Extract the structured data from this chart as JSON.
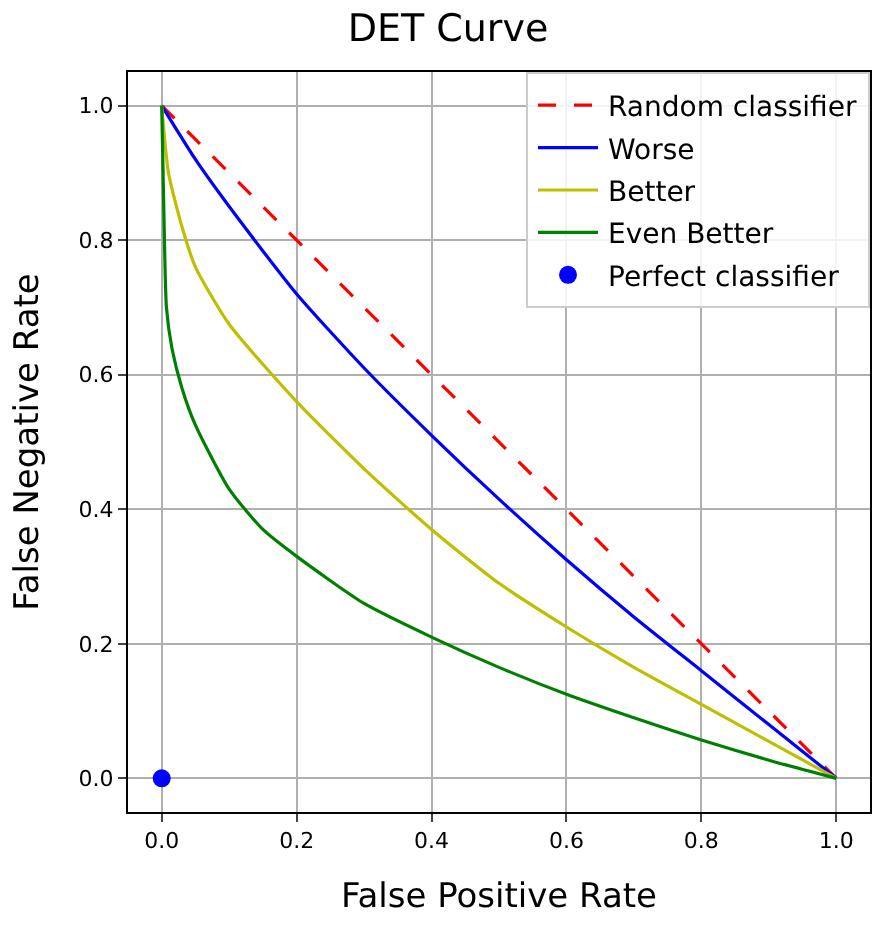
{
  "chart_data": {
    "type": "line",
    "title": "DET Curve",
    "xlabel": "False Positive Rate",
    "ylabel": "False Negative Rate",
    "xlim": [
      -0.05,
      1.05
    ],
    "ylim": [
      -0.05,
      1.05
    ],
    "xticks": [
      {
        "value": 0,
        "label": "0.0"
      },
      0.2,
      0.4,
      0.6,
      0.8,
      {
        "value": 1,
        "label": "1.0"
      }
    ],
    "yticks": [
      {
        "value": 0,
        "label": "0.0"
      },
      0.2,
      0.4,
      0.6,
      0.8,
      {
        "value": 1,
        "label": "1.0"
      }
    ],
    "grid": true,
    "legend": "top right",
    "series": [
      {
        "name": "Random classifier",
        "color": "#ff0000",
        "line_style": "dashed",
        "x": [
          0,
          1
        ],
        "values": [
          1,
          0
        ]
      },
      {
        "name": "Worse",
        "color": "#0000ff",
        "x": [
          0,
          0.05,
          0.1,
          0.2,
          0.3,
          0.4,
          0.5,
          0.6,
          0.7,
          0.8,
          0.9,
          1
        ],
        "values": [
          1,
          0.92,
          0.85,
          0.72,
          0.61,
          0.51,
          0.415,
          0.325,
          0.24,
          0.16,
          0.08,
          0
        ]
      },
      {
        "name": "Better",
        "color": "#bfbf00",
        "x": [
          0,
          0.01,
          0.03,
          0.05,
          0.1,
          0.2,
          0.3,
          0.4,
          0.5,
          0.6,
          0.7,
          0.8,
          0.9,
          1
        ],
        "values": [
          1,
          0.9,
          0.82,
          0.76,
          0.675,
          0.56,
          0.46,
          0.37,
          0.29,
          0.225,
          0.165,
          0.11,
          0.055,
          0
        ]
      },
      {
        "name": "Even Better",
        "color": "#008000",
        "x": [
          0,
          0.003,
          0.007,
          0.015,
          0.03,
          0.05,
          0.1,
          0.15,
          0.2,
          0.3,
          0.4,
          0.5,
          0.6,
          0.7,
          0.8,
          0.9,
          1
        ],
        "values": [
          1,
          0.85,
          0.7,
          0.64,
          0.58,
          0.525,
          0.43,
          0.37,
          0.33,
          0.26,
          0.21,
          0.165,
          0.125,
          0.09,
          0.057,
          0.027,
          0
        ]
      },
      {
        "name": "Perfect classifier",
        "type": "scatter",
        "marker": "circle",
        "color": "#0000ff",
        "x": [
          0
        ],
        "values": [
          0
        ]
      }
    ]
  }
}
